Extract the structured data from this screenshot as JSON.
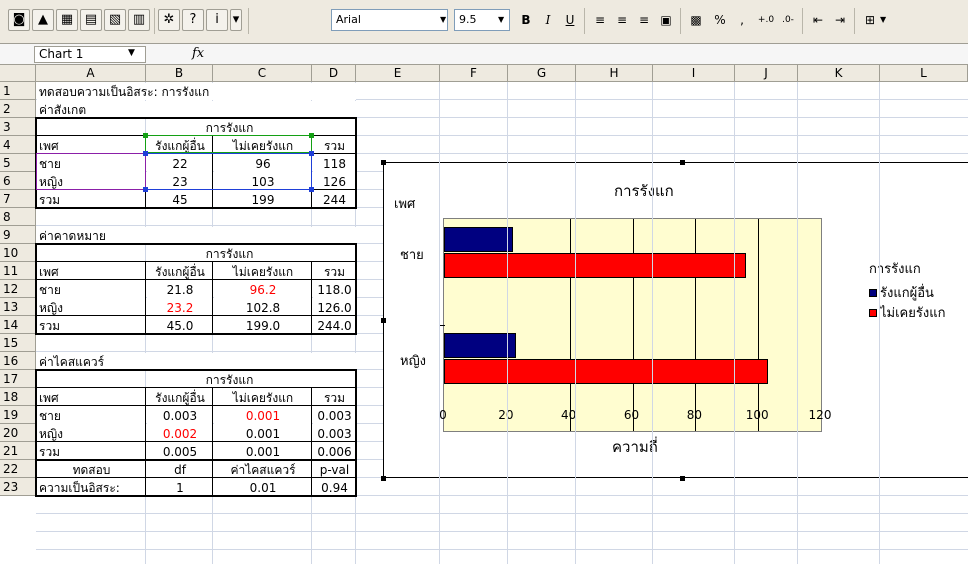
{
  "toolbar": {
    "font": "Arial",
    "size": "9.5",
    "bold": "B",
    "italic": "I",
    "underline": "U",
    "percent": "%",
    "comma": ",",
    "inc": "+.0",
    "dec": ".0-"
  },
  "formula": {
    "name": "Chart 1",
    "fx": "fx"
  },
  "columns": [
    "A",
    "B",
    "C",
    "D",
    "E",
    "F",
    "G",
    "H",
    "I",
    "J",
    "K",
    "L"
  ],
  "rows": [
    "1",
    "2",
    "3",
    "4",
    "5",
    "6",
    "7",
    "8",
    "9",
    "10",
    "11",
    "12",
    "13",
    "14",
    "15",
    "16",
    "17",
    "18",
    "19",
    "20",
    "21",
    "22",
    "23"
  ],
  "sheet": {
    "a1": "ทดสอบความเป็นอิสระ: การรังแก",
    "a2": "ค่าสังเกต",
    "obs_hdr": "การรังแก",
    "obs_cols": [
      "เพศ",
      "รังแกผู้อื่น",
      "ไม่เคยรังแก",
      "รวม"
    ],
    "obs_rows": [
      [
        "ชาย",
        "22",
        "96",
        "118"
      ],
      [
        "หญิง",
        "23",
        "103",
        "126"
      ],
      [
        "รวม",
        "45",
        "199",
        "244"
      ]
    ],
    "a9": "ค่าคาดหมาย",
    "exp_hdr": "การรังแก",
    "exp_cols": [
      "เพศ",
      "รังแกผู้อื่น",
      "ไม่เคยรังแก",
      "รวม"
    ],
    "exp_rows": [
      [
        "ชาย",
        "21.8",
        "96.2",
        "118.0"
      ],
      [
        "หญิง",
        "23.2",
        "102.8",
        "126.0"
      ],
      [
        "รวม",
        "45.0",
        "199.0",
        "244.0"
      ]
    ],
    "a16": "ค่าไคสแควร์",
    "chi_hdr": "การรังแก",
    "chi_cols": [
      "เพศ",
      "รังแกผู้อื่น",
      "ไม่เคยรังแก",
      "รวม"
    ],
    "chi_rows": [
      [
        "ชาย",
        "0.003",
        "0.001",
        "0.003"
      ],
      [
        "หญิง",
        "0.002",
        "0.001",
        "0.003"
      ],
      [
        "รวม",
        "0.005",
        "0.001",
        "0.006"
      ]
    ],
    "test_cols": [
      "ทดสอบ",
      "df",
      "ค่าไคสแควร์",
      "p-val"
    ],
    "test_row": [
      "ความเป็นอิสระ:",
      "1",
      "0.01",
      "0.94"
    ]
  },
  "chart_data": {
    "type": "bar",
    "orientation": "horizontal",
    "title": "การรังแก",
    "xlabel": "ความถี่",
    "ylabel": "เพศ",
    "categories": [
      "ชาย",
      "หญิง"
    ],
    "series": [
      {
        "name": "รังแกผู้อื่น",
        "color": "#000080",
        "values": [
          22,
          23
        ]
      },
      {
        "name": "ไม่เคยรังแก",
        "color": "#ff0000",
        "values": [
          96,
          103
        ]
      }
    ],
    "xlim": [
      0,
      120
    ],
    "ticks": [
      "0",
      "20",
      "40",
      "60",
      "80",
      "100",
      "120"
    ],
    "legend_title": "การรังแก",
    "legend": "right",
    "plot_background": "#fffdd0",
    "grid": true
  }
}
